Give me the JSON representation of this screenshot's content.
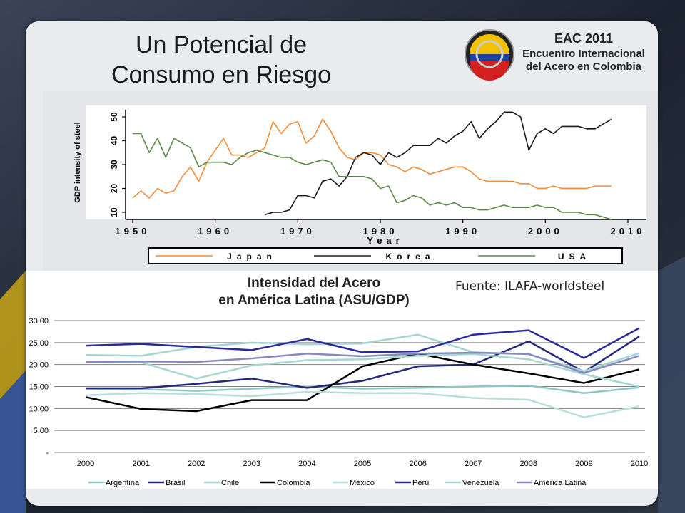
{
  "slide": {
    "title_lines": [
      "Un Potencial de",
      "Consumo en Riesgo"
    ],
    "source_text": "Fuente: ILAFA-worldsteel"
  },
  "logo": {
    "line1": "EAC 2011",
    "line2": "Encuentro Internacional",
    "line3": "del Acero en Colombia"
  },
  "colors": {
    "japan": "#f08c3a",
    "korea": "#1a1a1a",
    "usa": "#5b8a48",
    "argentina": "#8fc7c5",
    "brasil": "#27277a",
    "chile": "#a5d5d1",
    "colombia": "#000000",
    "mexico": "#b8dfdb",
    "peru": "#2a2a9a",
    "venezuela": "#a6d8d2",
    "america_latina": "#8888c0"
  },
  "chart_data": [
    {
      "type": "line",
      "title": "",
      "xlabel": "Year",
      "ylabel": "GDP intensity of steel",
      "xlim": [
        1950,
        2010
      ],
      "ylim": [
        7,
        53
      ],
      "x_ticks": [
        1950,
        1960,
        1970,
        1980,
        1990,
        2000,
        2010
      ],
      "y_ticks": [
        10,
        20,
        30,
        40,
        50
      ],
      "grid": false,
      "legend_position": "bottom",
      "series": [
        {
          "name": "Japan",
          "x": [
            1950,
            1951,
            1952,
            1953,
            1954,
            1955,
            1956,
            1957,
            1958,
            1959,
            1960,
            1961,
            1962,
            1963,
            1964,
            1965,
            1966,
            1967,
            1968,
            1969,
            1970,
            1971,
            1972,
            1973,
            1974,
            1975,
            1976,
            1977,
            1978,
            1979,
            1980,
            1981,
            1982,
            1983,
            1984,
            1985,
            1986,
            1987,
            1988,
            1989,
            1990,
            1991,
            1992,
            1993,
            1994,
            1995,
            1996,
            1997,
            1998,
            1999,
            2000,
            2001,
            2002,
            2003,
            2004,
            2005,
            2006,
            2007,
            2008
          ],
          "values": [
            16,
            19,
            16,
            20,
            18,
            19,
            25,
            29,
            23,
            31,
            36,
            41,
            34,
            34,
            33,
            35,
            37,
            48,
            43,
            47,
            48,
            39,
            42,
            49,
            44,
            37,
            33,
            32,
            35,
            35,
            34,
            30,
            29,
            27,
            29,
            28,
            26,
            27,
            28,
            29,
            29,
            27,
            24,
            23,
            23,
            23,
            23,
            22,
            22,
            20,
            20,
            21,
            20,
            20,
            20,
            20,
            21,
            21,
            21
          ]
        },
        {
          "name": "Korea",
          "x": [
            1966,
            1967,
            1968,
            1969,
            1970,
            1971,
            1972,
            1973,
            1974,
            1975,
            1976,
            1977,
            1978,
            1979,
            1980,
            1981,
            1982,
            1983,
            1984,
            1985,
            1986,
            1987,
            1988,
            1989,
            1990,
            1991,
            1992,
            1993,
            1994,
            1995,
            1996,
            1997,
            1998,
            1999,
            2000,
            2001,
            2002,
            2003,
            2004,
            2005,
            2006,
            2007,
            2008
          ],
          "values": [
            9,
            10,
            10,
            11,
            17,
            17,
            16,
            23,
            24,
            21,
            25,
            33,
            35,
            34,
            30,
            35,
            33,
            35,
            38,
            38,
            38,
            41,
            39,
            42,
            44,
            48,
            41,
            45,
            48,
            52,
            52,
            50,
            36,
            43,
            45,
            43,
            46,
            46,
            46,
            45,
            45,
            47,
            49
          ]
        },
        {
          "name": "USA",
          "x": [
            1950,
            1951,
            1952,
            1953,
            1954,
            1955,
            1956,
            1957,
            1958,
            1959,
            1960,
            1961,
            1962,
            1963,
            1964,
            1965,
            1966,
            1967,
            1968,
            1969,
            1970,
            1971,
            1972,
            1973,
            1974,
            1975,
            1976,
            1977,
            1978,
            1979,
            1980,
            1981,
            1982,
            1983,
            1984,
            1985,
            1986,
            1987,
            1988,
            1989,
            1990,
            1991,
            1992,
            1993,
            1994,
            1995,
            1996,
            1997,
            1998,
            1999,
            2000,
            2001,
            2002,
            2003,
            2004,
            2005,
            2006,
            2007,
            2008
          ],
          "values": [
            43,
            43,
            35,
            41,
            33,
            41,
            39,
            37,
            29,
            31,
            31,
            31,
            30,
            33,
            35,
            36,
            35,
            34,
            33,
            33,
            31,
            30,
            31,
            32,
            31,
            25,
            25,
            25,
            25,
            24,
            20,
            21,
            14,
            15,
            17,
            16,
            13,
            14,
            13,
            14,
            12,
            12,
            11,
            11,
            12,
            13,
            12,
            12,
            12,
            13,
            12,
            12,
            10,
            10,
            10,
            9,
            9,
            8,
            7
          ]
        }
      ]
    },
    {
      "type": "line",
      "title": "Intensidad del Acero en América Latina (ASU/GDP)",
      "title_lines": [
        "Intensidad del Acero",
        "en América Latina (ASU/GDP)"
      ],
      "categories": [
        "2000",
        "2001",
        "2002",
        "2003",
        "2004",
        "2005",
        "2006",
        "2007",
        "2008",
        "2009",
        "2010"
      ],
      "y_tick_labels": [
        "-",
        "5,00",
        "10,00",
        "15,00",
        "20,00",
        "25,00",
        "30,00"
      ],
      "y_ticks": [
        0,
        5,
        10,
        15,
        20,
        25,
        30
      ],
      "ylim": [
        0,
        30
      ],
      "grid": true,
      "legend_position": "bottom",
      "series": [
        {
          "name": "Argentina",
          "values": [
            14.5,
            14.4,
            14.0,
            14.5,
            15.0,
            14.5,
            14.7,
            15.0,
            15.2,
            13.5,
            14.8
          ]
        },
        {
          "name": "Brasil",
          "values": [
            14.6,
            14.6,
            15.6,
            16.8,
            14.7,
            16.3,
            19.6,
            20.0,
            25.3,
            18.3,
            26.4
          ]
        },
        {
          "name": "Chile",
          "values": [
            22.2,
            22.0,
            24.0,
            25.0,
            24.6,
            24.8,
            26.8,
            22.8,
            22.4,
            18.5,
            22.6
          ]
        },
        {
          "name": "Colombia",
          "values": [
            12.6,
            9.9,
            9.4,
            11.9,
            11.9,
            19.6,
            22.5,
            20.0,
            18.0,
            15.8,
            18.9
          ]
        },
        {
          "name": "México",
          "values": [
            13.0,
            13.5,
            13.3,
            12.8,
            13.8,
            13.5,
            13.5,
            12.4,
            12.0,
            8.0,
            10.5
          ]
        },
        {
          "name": "Perú",
          "values": [
            24.3,
            24.7,
            24.0,
            23.3,
            25.8,
            22.8,
            23.0,
            26.8,
            27.8,
            21.5,
            28.3
          ]
        },
        {
          "name": "Venezuela",
          "values": [
            20.6,
            20.5,
            16.8,
            19.8,
            21.0,
            21.2,
            22.0,
            22.4,
            21.2,
            17.8,
            15.0
          ]
        },
        {
          "name": "América Latina",
          "values": [
            20.6,
            20.7,
            20.6,
            21.4,
            22.5,
            21.9,
            22.5,
            22.7,
            22.4,
            18.1,
            22.0
          ]
        }
      ]
    }
  ]
}
